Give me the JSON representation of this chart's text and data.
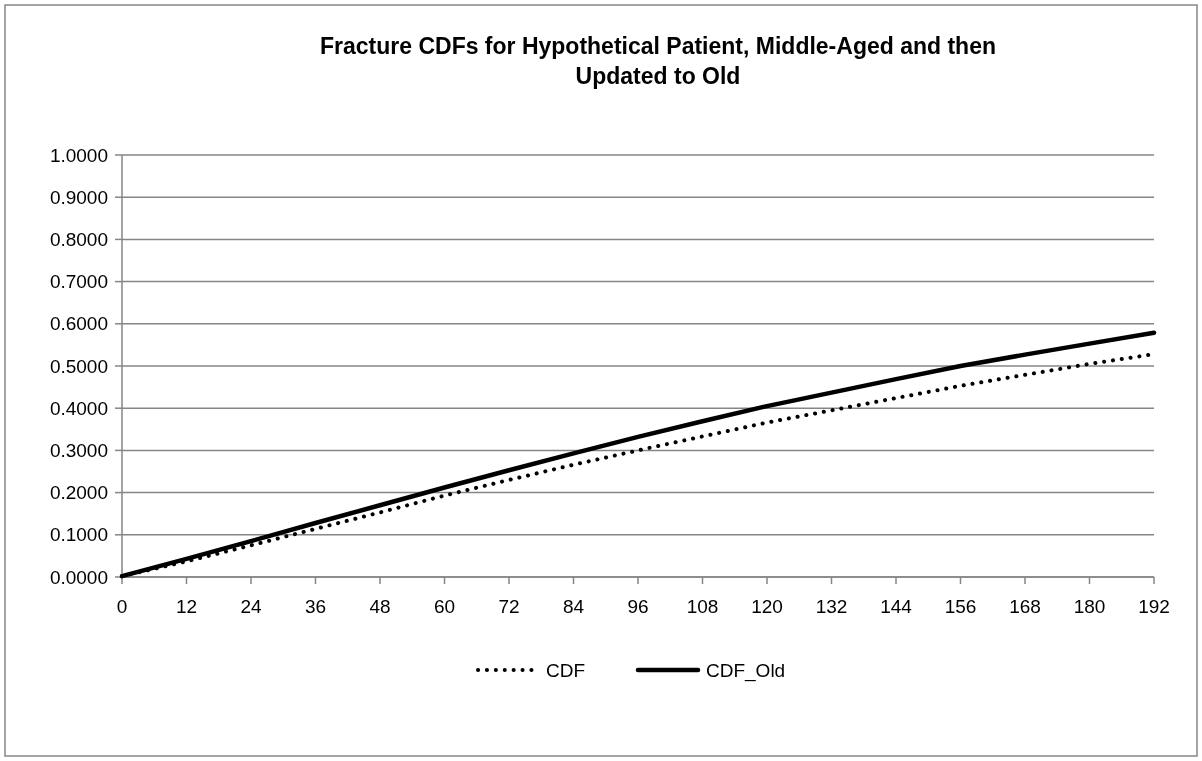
{
  "chart_data": {
    "type": "line",
    "title": "Fracture CDFs for Hypothetical Patient, Middle-Aged and then Updated to Old",
    "x": [
      0,
      12,
      24,
      36,
      48,
      60,
      72,
      84,
      96,
      108,
      120,
      132,
      144,
      156,
      168,
      180,
      192
    ],
    "series": [
      {
        "name": "CDF",
        "color": "#000000",
        "line_style": "dotted",
        "values": [
          0.002,
          0.037,
          0.075,
          0.114,
          0.153,
          0.193,
          0.23,
          0.266,
          0.3,
          0.333,
          0.366,
          0.395,
          0.424,
          0.453,
          0.479,
          0.505,
          0.528
        ]
      },
      {
        "name": "CDF_Old",
        "color": "#000000",
        "line_style": "solid",
        "values": [
          0.002,
          0.043,
          0.085,
          0.128,
          0.17,
          0.212,
          0.253,
          0.293,
          0.332,
          0.369,
          0.405,
          0.437,
          0.469,
          0.5,
          0.527,
          0.553,
          0.579
        ]
      }
    ],
    "xlim": [
      0,
      192
    ],
    "xticks": [
      0,
      12,
      24,
      36,
      48,
      60,
      72,
      84,
      96,
      108,
      120,
      132,
      144,
      156,
      168,
      180,
      192
    ],
    "ylim": [
      0,
      1
    ],
    "yticks": [
      {
        "value": 0,
        "label": "0.0000"
      },
      {
        "value": 0.1,
        "label": "0.1000"
      },
      {
        "value": 0.2,
        "label": "0.2000"
      },
      {
        "value": 0.3,
        "label": "0.3000"
      },
      {
        "value": 0.4,
        "label": "0.4000"
      },
      {
        "value": 0.5,
        "label": "0.5000"
      },
      {
        "value": 0.6,
        "label": "0.6000"
      },
      {
        "value": 0.7,
        "label": "0.7000"
      },
      {
        "value": 0.8,
        "label": "0.8000"
      },
      {
        "value": 0.9,
        "label": "0.9000"
      },
      {
        "value": 1,
        "label": "1.0000"
      }
    ],
    "grid": "y",
    "legend": "bottom",
    "marker": "none"
  }
}
